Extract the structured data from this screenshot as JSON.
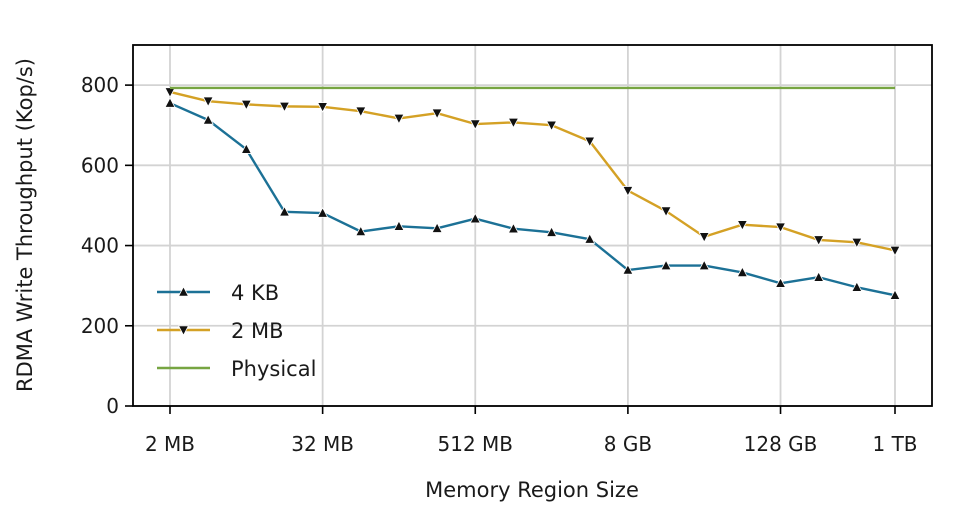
{
  "chart_data": {
    "type": "line",
    "title": "",
    "xlabel": "Memory Region Size",
    "ylabel": "RDMA Write Throughput (Kop/s)",
    "x": [
      "2 MB",
      "4 MB",
      "8 MB",
      "16 MB",
      "32 MB",
      "64 MB",
      "128 MB",
      "256 MB",
      "512 MB",
      "1 GB",
      "2 GB",
      "4 GB",
      "8 GB",
      "16 GB",
      "32 GB",
      "64 GB",
      "128 GB",
      "256 GB",
      "512 GB",
      "1 TB"
    ],
    "x_ticks": [
      "2 MB",
      "32 MB",
      "512 MB",
      "8 GB",
      "128 GB",
      "1 TB"
    ],
    "x_tick_indices": [
      0,
      4,
      8,
      12,
      16,
      19
    ],
    "y_ticks": [
      0,
      200,
      400,
      600,
      800
    ],
    "ylim": [
      0,
      900
    ],
    "grid": true,
    "legend_position": "lower-left",
    "series": [
      {
        "name": "4 KB",
        "color": "#1c7196",
        "marker": "triangle-up",
        "values": [
          755,
          713,
          640,
          484,
          481,
          435,
          448,
          443,
          467,
          442,
          433,
          416,
          339,
          350,
          350,
          333,
          306,
          321,
          296,
          276
        ]
      },
      {
        "name": "2 MB",
        "color": "#d4a125",
        "marker": "triangle-down",
        "values": [
          783,
          760,
          752,
          747,
          746,
          735,
          717,
          730,
          703,
          707,
          700,
          660,
          537,
          486,
          422,
          452,
          446,
          414,
          408,
          388
        ]
      },
      {
        "name": "Physical",
        "color": "#77a542",
        "marker": "none",
        "values": [
          793,
          793,
          793,
          793,
          793,
          793,
          793,
          793,
          793,
          793,
          793,
          793,
          793,
          793,
          793,
          793,
          793,
          793,
          793,
          793
        ]
      }
    ]
  }
}
